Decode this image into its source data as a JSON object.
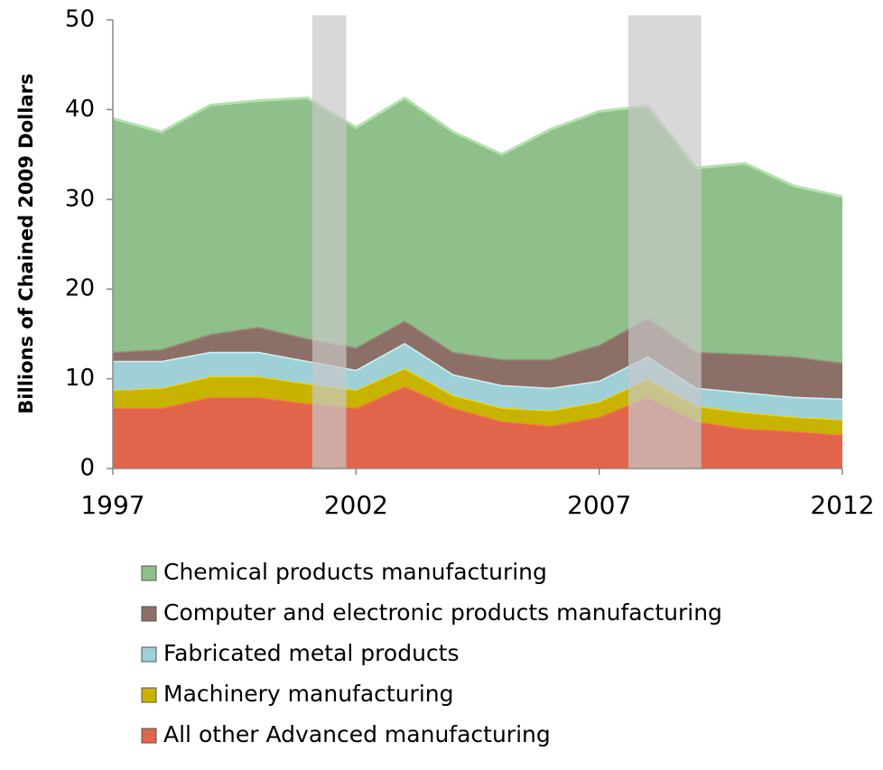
{
  "chart_data": {
    "type": "stacked_area",
    "y_label": "Billions of Chained 2009 Dollars",
    "x": [
      1997,
      1998,
      1999,
      2000,
      2001,
      2002,
      2003,
      2004,
      2005,
      2006,
      2007,
      2008,
      2009,
      2010,
      2011,
      2012
    ],
    "xlim": [
      1997,
      2012
    ],
    "xticks": [
      1997,
      2002,
      2007,
      2012
    ],
    "ylim": [
      0,
      50
    ],
    "yticks": [
      0,
      10,
      20,
      30,
      40,
      50
    ],
    "shaded_ranges": [
      [
        2001.1,
        2001.8
      ],
      [
        2007.6,
        2009.1
      ]
    ],
    "shade_color": "#c8c8c8",
    "legend": "bottom",
    "series": [
      {
        "name": "Chemical products manufacturing",
        "color": "#8fbf8a",
        "values": [
          26,
          24.2,
          25.5,
          25.2,
          26.8,
          24.5,
          24.8,
          24.5,
          22.8,
          25.6,
          26,
          23.6,
          20.5,
          21.2,
          19,
          18.5
        ]
      },
      {
        "name": "Computer and electronic products manufacturing",
        "color": "#8c7068",
        "values": [
          1,
          1.3,
          2,
          2.8,
          2.5,
          2.5,
          2.5,
          2.5,
          2.9,
          3.2,
          4,
          4.3,
          4,
          4.3,
          4.5,
          4
        ]
      },
      {
        "name": "Fabricated metal products",
        "color": "#9fd0d8",
        "values": [
          3.2,
          3,
          2.7,
          2.7,
          2.5,
          2.2,
          2.8,
          2.3,
          2.5,
          2.5,
          2.3,
          2.5,
          2,
          2.2,
          2.2,
          2.3
        ]
      },
      {
        "name": "Machinery manufacturing",
        "color": "#c8b400",
        "values": [
          2,
          2.2,
          2.3,
          2.3,
          2.2,
          2,
          2,
          1.4,
          1.5,
          1.7,
          1.7,
          2,
          1.7,
          1.8,
          1.6,
          1.7
        ]
      },
      {
        "name": "All other Advanced manufacturing",
        "color": "#e0654a",
        "values": [
          6.8,
          6.8,
          8,
          8,
          7.3,
          6.8,
          9.2,
          6.8,
          5.3,
          4.8,
          5.8,
          8,
          5.3,
          4.5,
          4.2,
          3.8
        ]
      }
    ]
  }
}
